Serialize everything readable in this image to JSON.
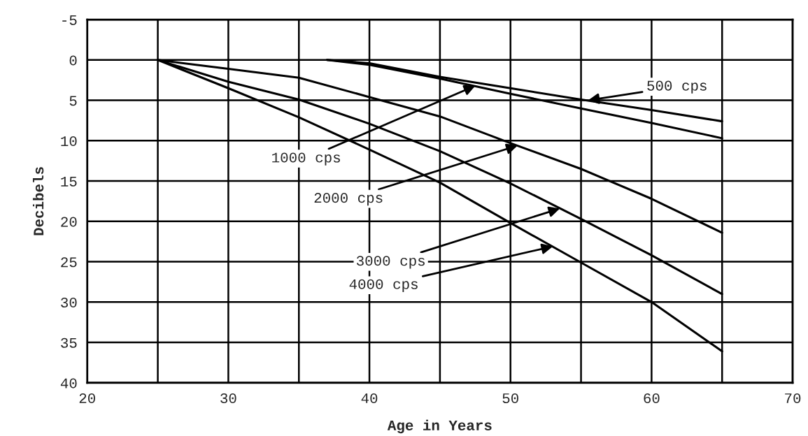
{
  "chart_data": {
    "type": "line",
    "xlabel": "Age in Years",
    "ylabel": "Decibels",
    "xlim": [
      20,
      70
    ],
    "ylim": [
      40,
      -5
    ],
    "xticks": [
      20,
      {
        "value": 25,
        "label": null
      },
      30,
      {
        "value": 35,
        "label": null
      },
      40,
      {
        "value": 45,
        "label": null
      },
      50,
      {
        "value": 55,
        "label": null
      },
      60,
      {
        "value": 65,
        "label": null
      },
      70
    ],
    "yticks": [
      -5,
      0,
      5,
      10,
      15,
      20,
      25,
      30,
      35,
      40
    ],
    "grid": true,
    "legend": false,
    "marker": "none",
    "line_style": "solid",
    "series": [
      {
        "color": "#000000",
        "x": [
          37,
          40,
          45,
          50,
          55,
          60,
          65
        ],
        "values": [
          0,
          0.4,
          2.1,
          3.5,
          4.9,
          6.2,
          7.6
        ]
      },
      {
        "color": "#000000",
        "x": [
          37,
          40,
          45,
          50,
          55,
          60,
          65
        ],
        "values": [
          0,
          0.6,
          2.3,
          4.2,
          6.0,
          7.8,
          9.7
        ]
      },
      {
        "color": "#000000",
        "x": [
          25,
          30,
          35,
          40,
          45,
          50,
          55,
          60,
          65
        ],
        "values": [
          0,
          1.1,
          2.2,
          4.6,
          7.0,
          10.3,
          13.5,
          17.2,
          21.4
        ]
      },
      {
        "color": "#000000",
        "x": [
          25,
          30,
          35,
          40,
          45,
          50,
          55,
          60,
          65
        ],
        "values": [
          0,
          2.7,
          4.9,
          7.9,
          11.3,
          15.3,
          19.7,
          24.2,
          29.0
        ]
      },
      {
        "color": "#000000",
        "x": [
          25,
          30,
          35,
          40,
          45,
          50,
          55,
          60,
          65
        ],
        "values": [
          0,
          3.5,
          7.1,
          11.1,
          15.2,
          20.2,
          25.1,
          30.0,
          36.1
        ]
      }
    ],
    "annotations": [
      {
        "text": "500 cps",
        "x": 55.5,
        "y": 5
      },
      {
        "text": "1000 cps",
        "x": 47.5,
        "y": 3.2
      },
      {
        "text": "2000 cps",
        "x": 50.5,
        "y": 10.6
      },
      {
        "text": "3000 cps",
        "x": 53.5,
        "y": 18.4
      },
      {
        "text": "4000 cps",
        "x": 53,
        "y": 23.1
      }
    ]
  }
}
